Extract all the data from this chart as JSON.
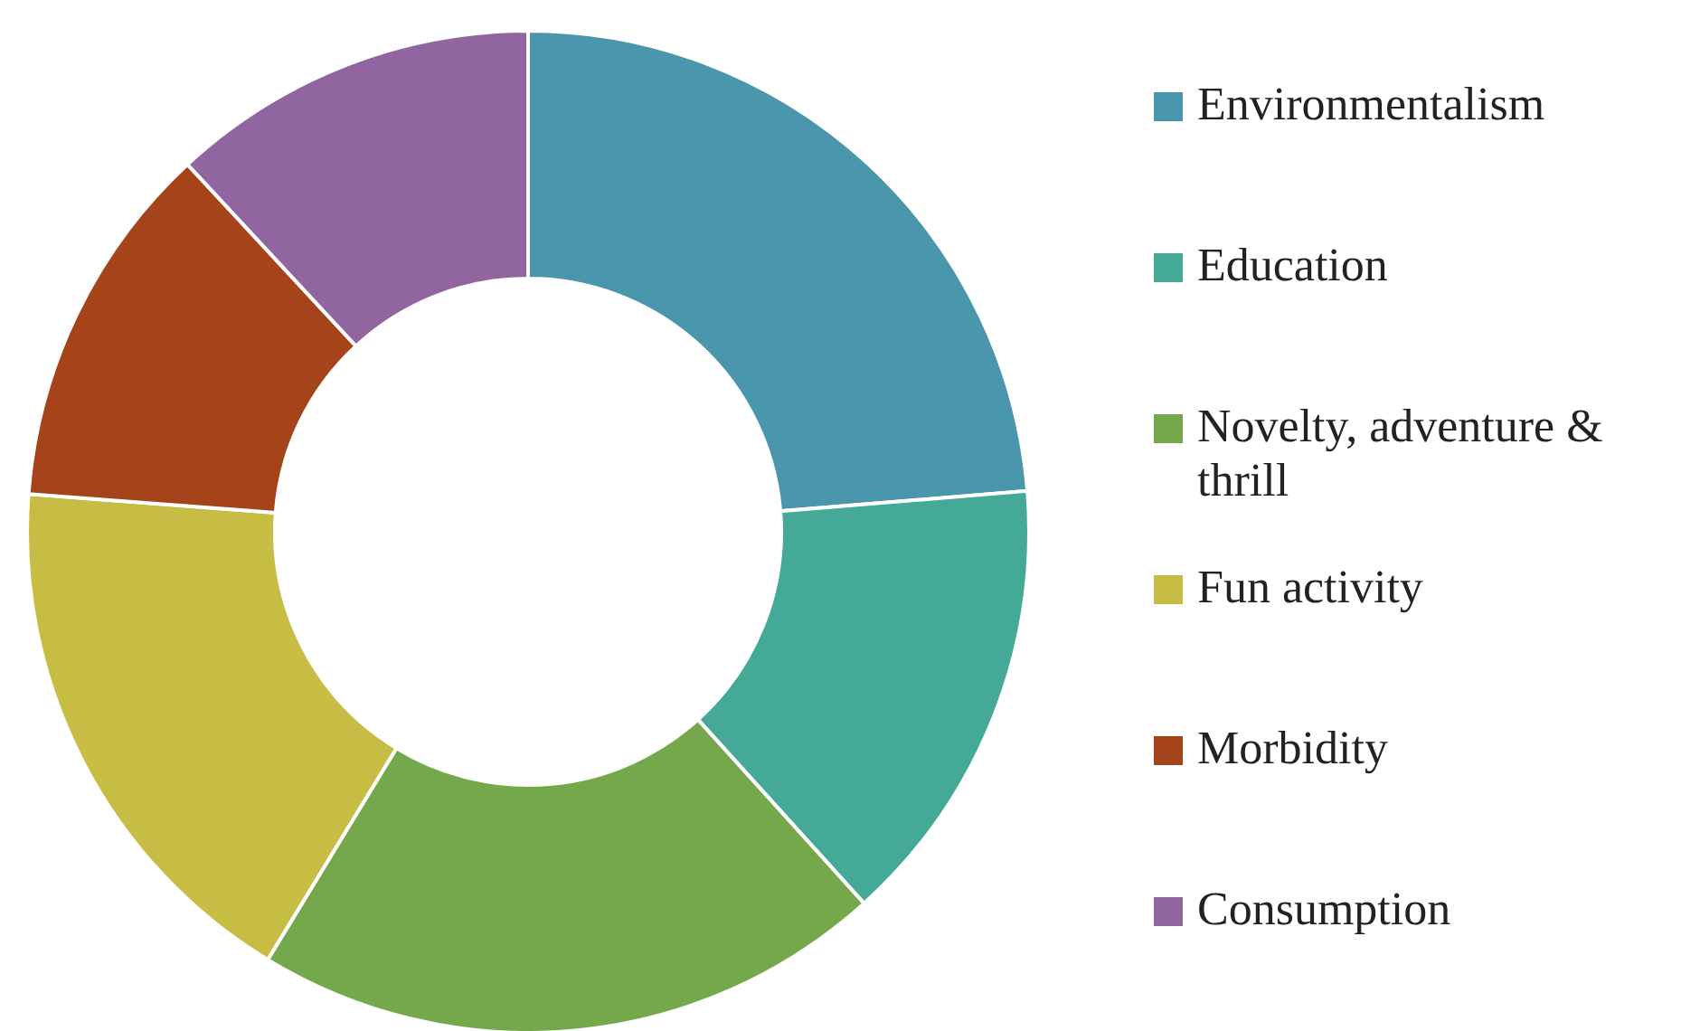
{
  "chart_data": {
    "type": "donut",
    "categories": [
      "Environmentalism",
      "Education",
      "Novelty, adventure & thrill",
      "Fun activity",
      "Morbidity",
      "Consumption"
    ],
    "values": [
      23.7,
      14.6,
      20.4,
      17.5,
      11.9,
      11.9
    ],
    "colors": [
      "#4a96ad",
      "#45a998",
      "#75a84a",
      "#c7bd45",
      "#a5441a",
      "#9065a0"
    ],
    "legend": "right"
  }
}
